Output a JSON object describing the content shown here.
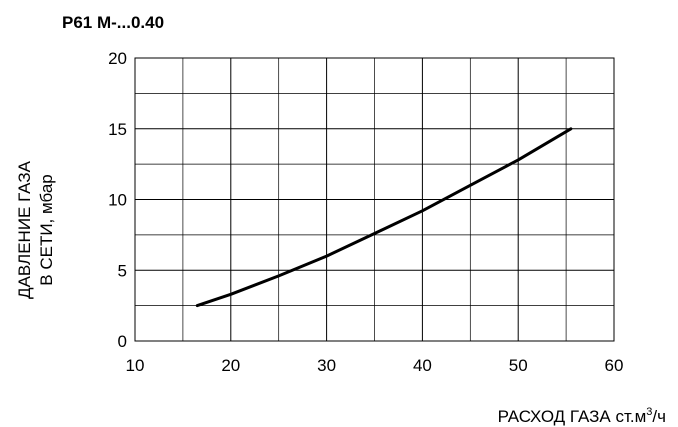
{
  "chart_data": {
    "type": "line",
    "title": "P61 M-...0.40",
    "ylabel_line1": "ДАВЛЕНИЕ ГАЗА",
    "ylabel_line2": "В СЕТИ, мбар",
    "xlabel_main": "РАСХОД ГАЗА ст.м",
    "xlabel_sup": "3",
    "xlabel_tail": "/ч",
    "xlim": [
      10,
      60
    ],
    "ylim": [
      0,
      20
    ],
    "x_ticks": [
      10,
      20,
      30,
      40,
      50,
      60
    ],
    "y_ticks": [
      0,
      5,
      10,
      15,
      20
    ],
    "x_tick_labels": [
      "10",
      "20",
      "30",
      "40",
      "50",
      "60"
    ],
    "y_tick_labels": [
      "0",
      "5",
      "10",
      "15",
      "20"
    ],
    "grid": true,
    "series": [
      {
        "x": [
          16.5,
          20,
          25,
          30,
          35,
          40,
          45,
          50,
          55.5
        ],
        "y": [
          2.5,
          3.3,
          4.6,
          6.0,
          7.6,
          9.2,
          11.0,
          12.8,
          15.0
        ]
      }
    ]
  }
}
